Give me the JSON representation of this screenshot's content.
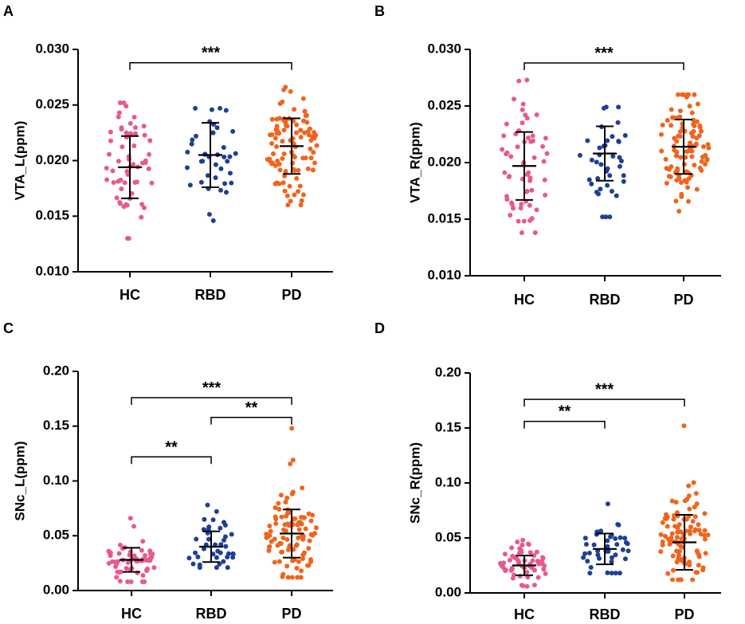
{
  "figure": {
    "panels_count": 4
  },
  "colors": {
    "HC": "#e8598f",
    "RBD": "#1d3f96",
    "PD": "#f0641e",
    "axis": "#000000"
  },
  "chart_data": [
    {
      "panel": "A",
      "type": "scatter",
      "ylabel": "VTA_L(ppm)",
      "categories": [
        "HC",
        "RBD",
        "PD"
      ],
      "ylim": [
        0.01,
        0.03
      ],
      "yticks": [
        "0.010",
        "0.015",
        "0.020",
        "0.025",
        "0.030"
      ],
      "yticks_values": [
        0.01,
        0.015,
        0.02,
        0.025,
        0.03
      ],
      "series": [
        {
          "name": "HC",
          "n": 60,
          "min": 0.013,
          "max": 0.0252,
          "mean": 0.0194,
          "sd": 0.0028
        },
        {
          "name": "RBD",
          "n": 40,
          "min": 0.0146,
          "max": 0.0247,
          "mean": 0.0205,
          "sd": 0.0029
        },
        {
          "name": "PD",
          "n": 100,
          "min": 0.016,
          "max": 0.0266,
          "mean": 0.0213,
          "sd": 0.0025
        }
      ],
      "significance": [
        {
          "from": "HC",
          "to": "PD",
          "label": "***",
          "y": 0.0288
        }
      ]
    },
    {
      "panel": "B",
      "type": "scatter",
      "ylabel": "VTA_R(ppm)",
      "categories": [
        "HC",
        "RBD",
        "PD"
      ],
      "ylim": [
        0.01,
        0.03
      ],
      "yticks": [
        "0.010",
        "0.015",
        "0.020",
        "0.025",
        "0.030"
      ],
      "yticks_values": [
        0.01,
        0.015,
        0.02,
        0.025,
        0.03
      ],
      "series": [
        {
          "name": "HC",
          "n": 60,
          "min": 0.0138,
          "max": 0.0273,
          "mean": 0.0197,
          "sd": 0.003
        },
        {
          "name": "RBD",
          "n": 40,
          "min": 0.0152,
          "max": 0.0249,
          "mean": 0.0208,
          "sd": 0.0024
        },
        {
          "name": "PD",
          "n": 100,
          "min": 0.0157,
          "max": 0.026,
          "mean": 0.0214,
          "sd": 0.0024
        }
      ],
      "significance": [
        {
          "from": "HC",
          "to": "PD",
          "label": "***",
          "y": 0.0288
        }
      ]
    },
    {
      "panel": "C",
      "type": "scatter",
      "ylabel": "SNc_L(ppm)",
      "categories": [
        "HC",
        "RBD",
        "PD"
      ],
      "ylim": [
        0.0,
        0.2
      ],
      "yticks": [
        "0.00",
        "0.05",
        "0.10",
        "0.15",
        "0.20"
      ],
      "yticks_values": [
        0.0,
        0.05,
        0.1,
        0.15,
        0.2
      ],
      "series": [
        {
          "name": "HC",
          "n": 60,
          "min": 0.008,
          "max": 0.066,
          "mean": 0.028,
          "sd": 0.011
        },
        {
          "name": "RBD",
          "n": 40,
          "min": 0.021,
          "max": 0.078,
          "mean": 0.04,
          "sd": 0.014
        },
        {
          "name": "PD",
          "n": 100,
          "min": 0.012,
          "max": 0.148,
          "mean": 0.052,
          "sd": 0.022
        }
      ],
      "significance": [
        {
          "from": "HC",
          "to": "PD",
          "label": "***",
          "y": 0.176
        },
        {
          "from": "RBD",
          "to": "PD",
          "label": "**",
          "y": 0.158
        },
        {
          "from": "HC",
          "to": "RBD",
          "label": "**",
          "y": 0.122
        }
      ]
    },
    {
      "panel": "D",
      "type": "scatter",
      "ylabel": "SNc_R(ppm)",
      "categories": [
        "HC",
        "RBD",
        "PD"
      ],
      "ylim": [
        0.0,
        0.2
      ],
      "yticks": [
        "0.00",
        "0.05",
        "0.10",
        "0.15",
        "0.20"
      ],
      "yticks_values": [
        0.0,
        0.05,
        0.1,
        0.15,
        0.2
      ],
      "series": [
        {
          "name": "HC",
          "n": 60,
          "min": 0.006,
          "max": 0.048,
          "mean": 0.025,
          "sd": 0.009
        },
        {
          "name": "RBD",
          "n": 40,
          "min": 0.018,
          "max": 0.081,
          "mean": 0.04,
          "sd": 0.014
        },
        {
          "name": "PD",
          "n": 100,
          "min": 0.012,
          "max": 0.152,
          "mean": 0.046,
          "sd": 0.025
        }
      ],
      "significance": [
        {
          "from": "HC",
          "to": "PD",
          "label": "***",
          "y": 0.176
        },
        {
          "from": "HC",
          "to": "RBD",
          "label": "**",
          "y": 0.156
        }
      ]
    }
  ]
}
